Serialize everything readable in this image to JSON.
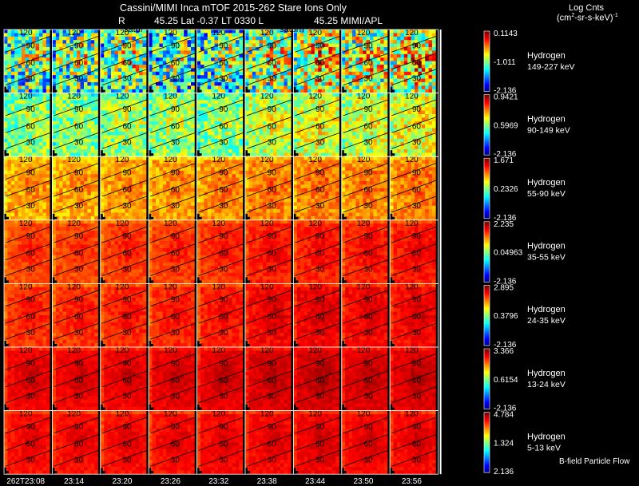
{
  "header": {
    "title": "Cassini/MIMI Inca mTOF  2015-262    Stare    Ions Only",
    "r_label": "R",
    "meta_mid": "45.25  Lat -0.37  LT 0330  L",
    "meta_l": "45.25   MIMI/APL",
    "units_line1": "Log Cnts",
    "units_line2": "(cm",
    "units_exp": "2",
    "units_line2b": "-sr-s-keV)",
    "units_exp2": "-1"
  },
  "planet_label": "satur",
  "planet_label2": "saturn",
  "footer": "B-field Particle Flow",
  "chart_data": {
    "type": "heatmap",
    "title": "Cassini/MIMI Inca mTOF  2015-262    Stare    Ions Only",
    "xlabel": "Time",
    "time_ticks": [
      "262T23:08",
      "23:14",
      "23:20",
      "23:26",
      "23:32",
      "23:38",
      "23:44",
      "23:50",
      "23:56"
    ],
    "contour_labels": [
      "30",
      "60",
      "90",
      "120"
    ],
    "colorbar_label": "Log Cnts (cm2-sr-s-keV)-1",
    "rows": [
      {
        "species": "Hydrogen",
        "energy": "149-227 keV",
        "cmax": "0.1143",
        "cmid": "-1.011",
        "cmin": "-2.136",
        "level": [
          0.42,
          0.42,
          0.45,
          0.4,
          0.4,
          0.48,
          0.55,
          0.52,
          0.58
        ],
        "noise": 0.3
      },
      {
        "species": "Hydrogen",
        "energy": "90-149 keV",
        "cmax": "0.9421",
        "cmid": "0.5969",
        "cmin": "-2.136",
        "level": [
          0.5,
          0.5,
          0.52,
          0.52,
          0.5,
          0.55,
          0.58,
          0.56,
          0.6
        ],
        "noise": 0.14
      },
      {
        "species": "Hydrogen",
        "energy": "55-90 keV",
        "cmax": "1.671",
        "cmid": "0.2326",
        "cmin": "-2.136",
        "level": [
          0.7,
          0.7,
          0.71,
          0.71,
          0.72,
          0.74,
          0.74,
          0.73,
          0.74
        ],
        "noise": 0.07
      },
      {
        "species": "Hydrogen",
        "energy": "35-55 keV",
        "cmax": "2.235",
        "cmid": "0.04963",
        "cmin": "-2.136",
        "level": [
          0.8,
          0.8,
          0.81,
          0.81,
          0.82,
          0.84,
          0.84,
          0.84,
          0.85
        ],
        "noise": 0.04
      },
      {
        "species": "Hydrogen",
        "energy": "24-35 keV",
        "cmax": "2.895",
        "cmid": "0.3796",
        "cmin": "-2.136",
        "level": [
          0.82,
          0.82,
          0.83,
          0.83,
          0.84,
          0.87,
          0.88,
          0.87,
          0.87
        ],
        "noise": 0.04
      },
      {
        "species": "Hydrogen",
        "energy": "13-24 keV",
        "cmax": "3.366",
        "cmid": "0.6154",
        "cmin": "-2.136",
        "level": [
          0.88,
          0.88,
          0.88,
          0.89,
          0.89,
          0.9,
          0.91,
          0.9,
          0.9
        ],
        "noise": 0.03
      },
      {
        "species": "Hydrogen",
        "energy": "5-13 keV",
        "cmax": "4.784",
        "cmid": "1.324",
        "cmin": "2.136",
        "level": [
          0.86,
          0.86,
          0.86,
          0.86,
          0.87,
          0.87,
          0.88,
          0.87,
          0.87
        ],
        "noise": 0.03
      }
    ]
  }
}
